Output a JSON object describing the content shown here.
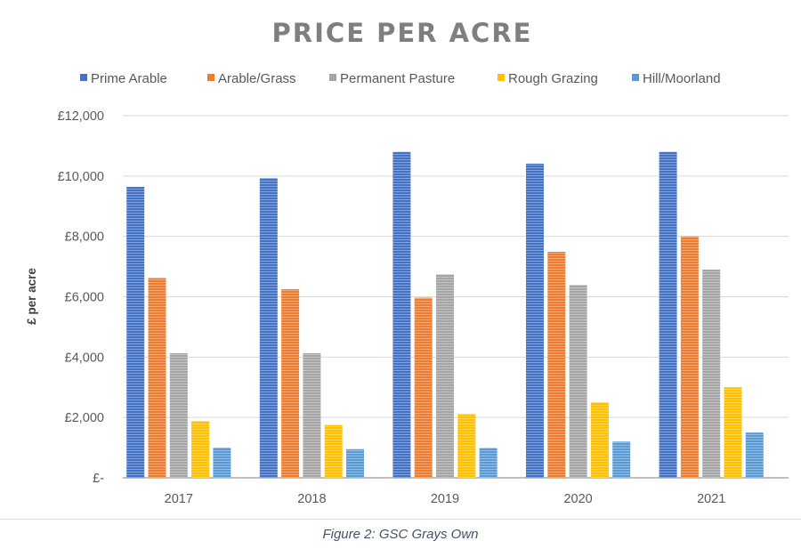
{
  "chart_data": {
    "type": "bar",
    "title": "PRICE PER ACRE",
    "xlabel": "",
    "ylabel": "£ per acre",
    "ylim": [
      0,
      12000
    ],
    "yticks": [
      0,
      2000,
      4000,
      6000,
      8000,
      10000,
      12000
    ],
    "ytick_labels": [
      "£-",
      "£2,000",
      "£4,000",
      "£6,000",
      "£8,000",
      "£10,000",
      "£12,000"
    ],
    "grid": true,
    "legend_position": "top",
    "categories": [
      "2017",
      "2018",
      "2019",
      "2020",
      "2021"
    ],
    "series": [
      {
        "name": "Prime Arable",
        "color": "#4472c4",
        "values": [
          9640,
          9930,
          10800,
          10410,
          10800
        ]
      },
      {
        "name": "Arable/Grass",
        "color": "#ed7d31",
        "values": [
          6620,
          6250,
          5970,
          7490,
          8000
        ]
      },
      {
        "name": "Permanent Pasture",
        "color": "#a5a5a5",
        "values": [
          4130,
          4130,
          6740,
          6390,
          6900
        ]
      },
      {
        "name": "Rough Grazing",
        "color": "#ffc000",
        "values": [
          1880,
          1750,
          2110,
          2500,
          3000
        ]
      },
      {
        "name": "Hill/Moorland",
        "color": "#5b9bd5",
        "values": [
          1000,
          950,
          990,
          1200,
          1500
        ]
      }
    ]
  },
  "caption": "Figure 2:  GSC Grays Own"
}
